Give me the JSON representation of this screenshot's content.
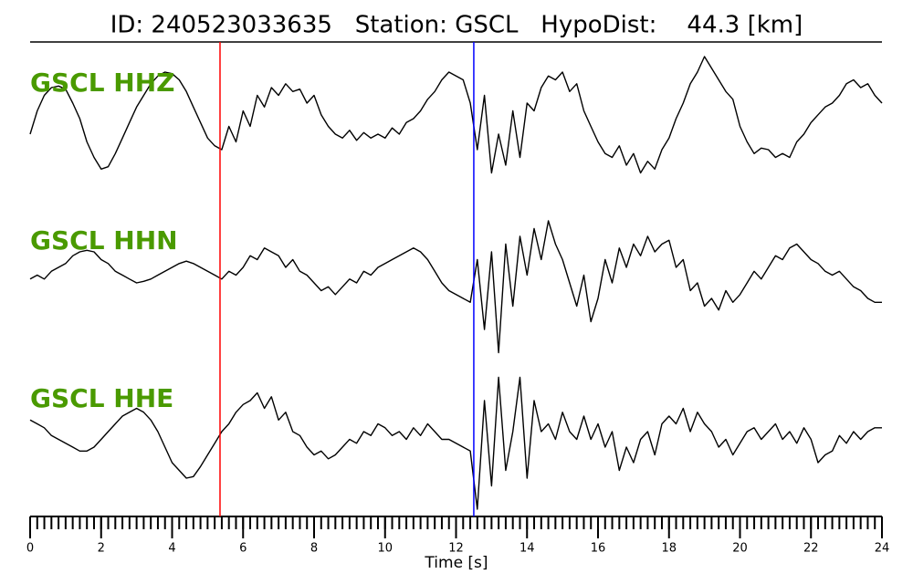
{
  "chart_data": {
    "type": "seismogram",
    "title": "ID: 240523033635   Station: GSCL   HypoDist:    44.3 [km]",
    "xlabel": "Time [s]",
    "xlim": [
      0,
      24
    ],
    "xticks": [
      0,
      2,
      4,
      6,
      8,
      10,
      12,
      14,
      16,
      18,
      20,
      22,
      24
    ],
    "xminorticks": [
      0,
      0.2,
      0.4,
      0.6,
      0.8,
      1,
      1.2,
      1.4,
      1.6,
      1.8,
      2,
      2.2,
      2.4,
      2.6,
      2.8,
      3,
      3.2,
      3.4,
      3.6,
      3.8,
      4,
      4.2,
      4.4,
      4.6,
      4.8,
      5,
      5.2,
      5.4,
      5.6,
      5.8,
      6,
      6.2,
      6.4,
      6.6,
      6.8,
      7,
      7.2,
      7.4,
      7.6,
      7.8,
      8,
      8.2,
      8.4,
      8.6,
      8.8,
      9,
      9.2,
      9.4,
      9.6,
      9.8,
      10,
      10.2,
      10.4,
      10.6,
      10.8,
      11,
      11.2,
      11.4,
      11.6,
      11.8,
      12,
      12.2,
      12.4,
      12.6,
      12.8,
      13,
      13.2,
      13.4,
      13.6,
      13.8,
      14,
      14.2,
      14.4,
      14.6,
      14.8,
      15,
      15.2,
      15.4,
      15.6,
      15.8,
      16,
      16.2,
      16.4,
      16.6,
      16.8,
      17,
      17.2,
      17.4,
      17.6,
      17.8,
      18,
      18.2,
      18.4,
      18.6,
      18.8,
      19,
      19.2,
      19.4,
      19.6,
      19.8,
      20,
      20.2,
      20.4,
      20.6,
      20.8,
      21,
      21.2,
      21.4,
      21.6,
      21.8,
      22,
      22.2,
      22.4,
      22.6,
      22.8,
      23,
      23.2,
      23.4,
      23.6,
      23.8,
      24
    ],
    "ylim": [
      -1,
      1
    ],
    "x": [
      0,
      0.2,
      0.4,
      0.6,
      0.8,
      1,
      1.2,
      1.4,
      1.6,
      1.8,
      2,
      2.2,
      2.4,
      2.6,
      2.8,
      3,
      3.2,
      3.4,
      3.6,
      3.8,
      4,
      4.2,
      4.4,
      4.6,
      4.8,
      5,
      5.2,
      5.4,
      5.6,
      5.8,
      6,
      6.2,
      6.4,
      6.6,
      6.8,
      7,
      7.2,
      7.4,
      7.6,
      7.8,
      8,
      8.2,
      8.4,
      8.6,
      8.8,
      9,
      9.2,
      9.4,
      9.6,
      9.8,
      10,
      10.2,
      10.4,
      10.6,
      10.8,
      11,
      11.2,
      11.4,
      11.6,
      11.8,
      12,
      12.2,
      12.4,
      12.6,
      12.8,
      13,
      13.2,
      13.4,
      13.6,
      13.8,
      14,
      14.2,
      14.4,
      14.6,
      14.8,
      15,
      15.2,
      15.4,
      15.6,
      15.8,
      16,
      16.2,
      16.4,
      16.6,
      16.8,
      17,
      17.2,
      17.4,
      17.6,
      17.8,
      18,
      18.2,
      18.4,
      18.6,
      18.8,
      19,
      19.2,
      19.4,
      19.6,
      19.8,
      20,
      20.2,
      20.4,
      20.6,
      20.8,
      21,
      21.2,
      21.4,
      21.6,
      21.8,
      22,
      22.2,
      22.4,
      22.6,
      22.8,
      23,
      23.2,
      23.4,
      23.6,
      23.8,
      24
    ],
    "series": [
      {
        "name": "GSCL HHZ",
        "color": "#000000",
        "label_color": "#4a9a00",
        "values": [
          -0.2,
          0.1,
          0.3,
          0.4,
          0.42,
          0.38,
          0.2,
          0,
          -0.3,
          -0.5,
          -0.65,
          -0.62,
          -0.45,
          -0.25,
          -0.05,
          0.15,
          0.3,
          0.45,
          0.55,
          0.6,
          0.58,
          0.5,
          0.35,
          0.15,
          -0.05,
          -0.25,
          -0.35,
          -0.4,
          -0.1,
          -0.3,
          0.1,
          -0.1,
          0.3,
          0.15,
          0.4,
          0.3,
          0.45,
          0.35,
          0.38,
          0.2,
          0.3,
          0.05,
          -0.1,
          -0.2,
          -0.25,
          -0.15,
          -0.28,
          -0.18,
          -0.25,
          -0.2,
          -0.25,
          -0.12,
          -0.2,
          -0.05,
          0,
          0.1,
          0.25,
          0.35,
          0.5,
          0.6,
          0.55,
          0.5,
          0.2,
          -0.4,
          0.3,
          -0.7,
          -0.2,
          -0.6,
          0.1,
          -0.5,
          0.2,
          0.1,
          0.4,
          0.55,
          0.5,
          0.6,
          0.35,
          0.45,
          0.1,
          -0.1,
          -0.3,
          -0.45,
          -0.5,
          -0.35,
          -0.6,
          -0.45,
          -0.7,
          -0.55,
          -0.65,
          -0.4,
          -0.25,
          0,
          0.2,
          0.45,
          0.6,
          0.8,
          0.65,
          0.5,
          0.35,
          0.25,
          -0.1,
          -0.3,
          -0.45,
          -0.38,
          -0.4,
          -0.5,
          -0.45,
          -0.5,
          -0.3,
          -0.2,
          -0.05,
          0.05,
          0.15,
          0.2,
          0.3,
          0.45,
          0.5,
          0.4,
          0.45,
          0.3,
          0.2
        ]
      },
      {
        "name": "GSCL HHN",
        "color": "#000000",
        "label_color": "#4a9a00",
        "values": [
          0.05,
          0.1,
          0.05,
          0.15,
          0.2,
          0.25,
          0.35,
          0.4,
          0.42,
          0.4,
          0.3,
          0.25,
          0.15,
          0.1,
          0.05,
          0,
          0.02,
          0.05,
          0.1,
          0.15,
          0.2,
          0.25,
          0.28,
          0.25,
          0.2,
          0.15,
          0.1,
          0.05,
          0.15,
          0.1,
          0.2,
          0.35,
          0.3,
          0.45,
          0.4,
          0.35,
          0.2,
          0.3,
          0.15,
          0.1,
          0,
          -0.1,
          -0.05,
          -0.15,
          -0.05,
          0.05,
          0,
          0.15,
          0.1,
          0.2,
          0.25,
          0.3,
          0.35,
          0.4,
          0.45,
          0.4,
          0.3,
          0.15,
          0,
          -0.1,
          -0.15,
          -0.2,
          -0.25,
          0.3,
          -0.6,
          0.4,
          -0.9,
          0.5,
          -0.3,
          0.6,
          0.1,
          0.7,
          0.3,
          0.8,
          0.5,
          0.3,
          0,
          -0.3,
          0.1,
          -0.5,
          -0.2,
          0.3,
          0,
          0.45,
          0.2,
          0.5,
          0.35,
          0.6,
          0.4,
          0.5,
          0.55,
          0.2,
          0.3,
          -0.1,
          0,
          -0.3,
          -0.2,
          -0.35,
          -0.1,
          -0.25,
          -0.15,
          0,
          0.15,
          0.05,
          0.2,
          0.35,
          0.3,
          0.45,
          0.5,
          0.4,
          0.3,
          0.25,
          0.15,
          0.1,
          0.15,
          0.05,
          -0.05,
          -0.1,
          -0.2,
          -0.25,
          -0.25
        ]
      },
      {
        "name": "GSCL HHE",
        "color": "#000000",
        "label_color": "#4a9a00",
        "values": [
          0.35,
          0.3,
          0.25,
          0.15,
          0.1,
          0.05,
          0,
          -0.05,
          -0.05,
          0,
          0.1,
          0.2,
          0.3,
          0.4,
          0.45,
          0.5,
          0.45,
          0.35,
          0.2,
          0,
          -0.2,
          -0.3,
          -0.4,
          -0.38,
          -0.25,
          -0.1,
          0.05,
          0.2,
          0.3,
          0.45,
          0.55,
          0.6,
          0.7,
          0.5,
          0.65,
          0.35,
          0.45,
          0.2,
          0.15,
          0,
          -0.1,
          -0.05,
          -0.15,
          -0.1,
          0,
          0.1,
          0.05,
          0.2,
          0.15,
          0.3,
          0.25,
          0.15,
          0.2,
          0.1,
          0.25,
          0.15,
          0.3,
          0.2,
          0.1,
          0.1,
          0.05,
          0,
          -0.05,
          -0.8,
          0.6,
          -0.5,
          0.9,
          -0.3,
          0.2,
          0.9,
          -0.4,
          0.6,
          0.2,
          0.3,
          0.1,
          0.45,
          0.2,
          0.1,
          0.4,
          0.1,
          0.3,
          0,
          0.2,
          -0.3,
          0,
          -0.2,
          0.1,
          0.2,
          -0.1,
          0.3,
          0.4,
          0.3,
          0.5,
          0.2,
          0.45,
          0.3,
          0.2,
          0,
          0.1,
          -0.1,
          0.05,
          0.2,
          0.25,
          0.1,
          0.2,
          0.3,
          0.1,
          0.2,
          0.05,
          0.25,
          0.1,
          -0.2,
          -0.1,
          -0.05,
          0.15,
          0.05,
          0.2,
          0.1,
          0.2,
          0.25,
          0.25
        ]
      }
    ],
    "picks": [
      {
        "t": 5.35,
        "color": "#ff0000"
      },
      {
        "t": 12.5,
        "color": "#0000ff"
      }
    ]
  }
}
